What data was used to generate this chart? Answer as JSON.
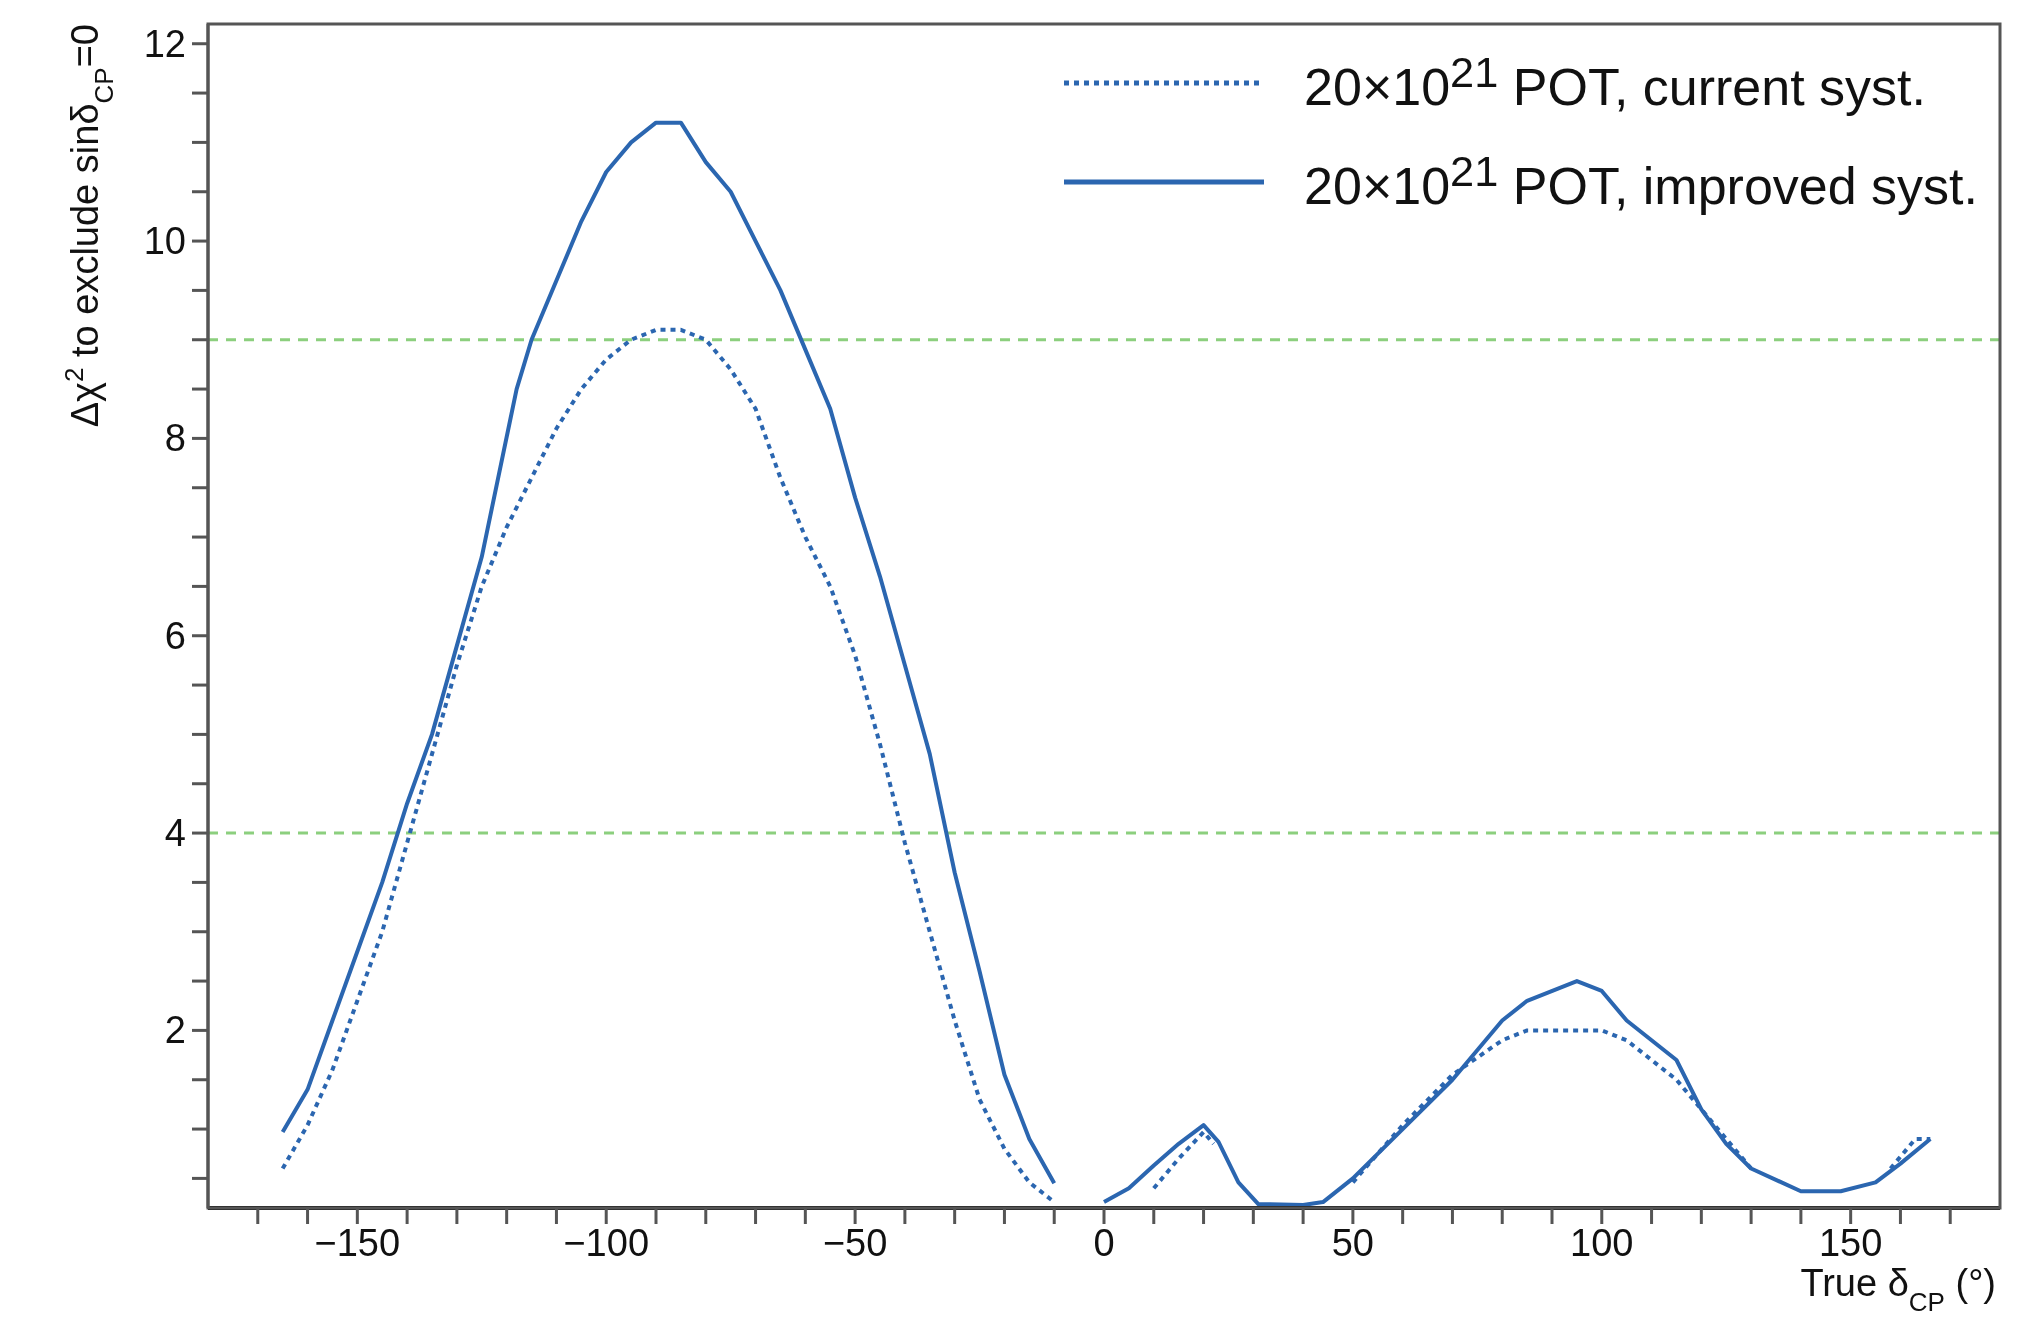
{
  "chart_data": {
    "type": "line",
    "xlabel": "True δ$_{CP}$ (°)",
    "ylabel": "Δχ$^{2}$ to exclude sinδ$_{CP}$=0",
    "xlim": [
      -180,
      180
    ],
    "xticks": [
      {
        "value": -170,
        "label": null
      },
      {
        "value": -160,
        "label": null
      },
      -150,
      {
        "value": -140,
        "label": null
      },
      {
        "value": -130,
        "label": null
      },
      {
        "value": -120,
        "label": null
      },
      {
        "value": -110,
        "label": null
      },
      -100,
      {
        "value": -90,
        "label": null
      },
      {
        "value": -80,
        "label": null
      },
      {
        "value": -70,
        "label": null
      },
      {
        "value": -60,
        "label": null
      },
      -50,
      {
        "value": -40,
        "label": null
      },
      {
        "value": -30,
        "label": null
      },
      {
        "value": -20,
        "label": null
      },
      {
        "value": -10,
        "label": null
      },
      0,
      {
        "value": 10,
        "label": null
      },
      {
        "value": 20,
        "label": null
      },
      {
        "value": 30,
        "label": null
      },
      {
        "value": 40,
        "label": null
      },
      50,
      {
        "value": 60,
        "label": null
      },
      {
        "value": 70,
        "label": null
      },
      {
        "value": 80,
        "label": null
      },
      {
        "value": 90,
        "label": null
      },
      100,
      {
        "value": 110,
        "label": null
      },
      {
        "value": 120,
        "label": null
      },
      {
        "value": 130,
        "label": null
      },
      {
        "value": 140,
        "label": null
      },
      150,
      {
        "value": 160,
        "label": null
      },
      {
        "value": 170,
        "label": null
      }
    ],
    "ylim": [
      0.2,
      12.2
    ],
    "yticks": [
      {
        "value": 0.5,
        "label": null
      },
      {
        "value": 1,
        "label": null
      },
      {
        "value": 1.5,
        "label": null
      },
      2,
      {
        "value": 2.5,
        "label": null
      },
      {
        "value": 3,
        "label": null
      },
      {
        "value": 3.5,
        "label": null
      },
      4,
      {
        "value": 4.5,
        "label": null
      },
      {
        "value": 5,
        "label": null
      },
      {
        "value": 5.5,
        "label": null
      },
      6,
      {
        "value": 6.5,
        "label": null
      },
      {
        "value": 7,
        "label": null
      },
      {
        "value": 7.5,
        "label": null
      },
      8,
      {
        "value": 8.5,
        "label": null
      },
      {
        "value": 9,
        "label": null
      },
      {
        "value": 9.5,
        "label": null
      },
      10,
      {
        "value": 10.5,
        "label": null
      },
      {
        "value": 11,
        "label": null
      },
      {
        "value": 11.5,
        "label": null
      },
      12
    ],
    "legend": "top right",
    "marker": "none",
    "ref_lines": [
      {
        "axis": "y",
        "value": 9,
        "color": "#8ccf7e",
        "line_style": "dashed"
      },
      {
        "axis": "y",
        "value": 4,
        "color": "#8ccf7e",
        "line_style": "dashed"
      }
    ],
    "series": [
      {
        "name": "20×10$^{21}$ POT, current syst.",
        "color": "#2b66b0",
        "line_style": "dotted",
        "x": [
          -165,
          -160,
          -155,
          -150,
          -145,
          -140,
          -135,
          -130,
          -125,
          -120,
          -115,
          -110,
          -105,
          -100,
          -95,
          -90,
          -85,
          -80,
          -75,
          -70,
          -65,
          -60,
          -55,
          -50,
          -45,
          -40,
          -35,
          -30,
          -25,
          -20,
          -15,
          -10,
          -8,
          5,
          10,
          15,
          20,
          22,
          24,
          45,
          50,
          60,
          70,
          80,
          85,
          90,
          100,
          105,
          115,
          125,
          130,
          133,
          153,
          158,
          163,
          166
        ],
        "values": [
          0.6,
          1.04,
          1.6,
          2.3,
          3.0,
          3.9,
          4.8,
          5.7,
          6.5,
          7.1,
          7.6,
          8.1,
          8.5,
          8.8,
          9.0,
          9.1,
          9.1,
          9.0,
          8.7,
          8.3,
          7.6,
          7.0,
          6.5,
          5.8,
          4.9,
          3.9,
          3.0,
          2.1,
          1.3,
          0.8,
          0.46,
          0.26,
          null,
          null,
          0.4,
          0.7,
          0.97,
          0.85,
          null,
          null,
          0.46,
          1.04,
          1.55,
          1.9,
          2.0,
          2.0,
          2.0,
          1.9,
          1.5,
          0.9,
          0.6,
          null,
          null,
          0.6,
          0.9,
          0.9
        ]
      },
      {
        "name": "20×10$^{21}$ POT, improved syst.",
        "color": "#2b66b0",
        "line_style": "solid",
        "x": [
          -165,
          -160,
          -155,
          -150,
          -145,
          -140,
          -135,
          -130,
          -125,
          -118,
          -115,
          -110,
          -105,
          -100,
          -95,
          -90,
          -85,
          -80,
          -75,
          -70,
          -65,
          -60,
          -55,
          -50,
          -45,
          -40,
          -35,
          -30,
          -25,
          -20,
          -15,
          -10,
          -7,
          -2,
          0,
          5,
          10,
          15,
          20,
          23,
          27,
          31,
          40,
          44,
          50,
          60,
          70,
          80,
          85,
          95,
          100,
          105,
          115,
          120,
          125,
          130,
          140,
          148,
          155,
          160,
          166
        ],
        "values": [
          0.97,
          1.4,
          2.1,
          2.8,
          3.5,
          4.3,
          5.0,
          5.9,
          6.8,
          8.5,
          9.0,
          9.6,
          10.2,
          10.7,
          11.0,
          11.2,
          11.2,
          10.8,
          10.5,
          10.0,
          9.5,
          8.9,
          8.3,
          7.4,
          6.6,
          5.7,
          4.8,
          3.6,
          2.6,
          1.55,
          0.9,
          0.45,
          null,
          null,
          0.26,
          0.4,
          0.63,
          0.85,
          1.04,
          0.87,
          0.46,
          0.24,
          0.23,
          0.26,
          0.5,
          1.0,
          1.5,
          2.1,
          2.3,
          2.5,
          2.4,
          2.1,
          1.7,
          1.2,
          0.85,
          0.6,
          0.37,
          0.37,
          0.46,
          0.65,
          0.9
        ]
      }
    ]
  }
}
